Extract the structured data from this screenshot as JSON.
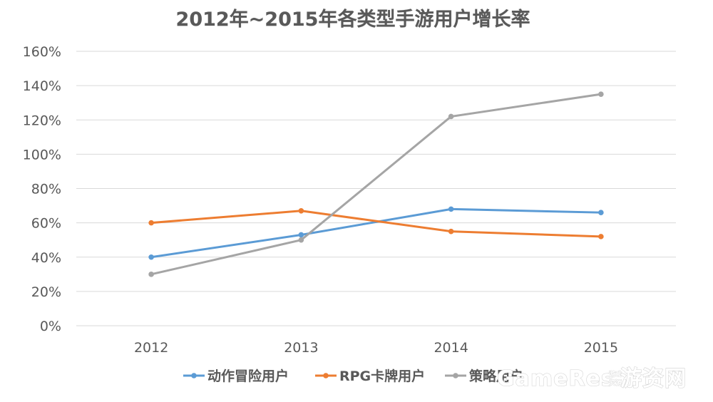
{
  "chart_data": {
    "type": "line",
    "title": "2012年~2015年各类型手游用户增长率",
    "xlabel": "",
    "ylabel": "",
    "categories": [
      "2012",
      "2013",
      "2014",
      "2015"
    ],
    "ylim": [
      0,
      160
    ],
    "yticks": [
      0,
      20,
      40,
      60,
      80,
      100,
      120,
      140,
      160
    ],
    "ytick_labels": [
      "0%",
      "20%",
      "40%",
      "60%",
      "80%",
      "100%",
      "120%",
      "140%",
      "160%"
    ],
    "grid": true,
    "legend_position": "bottom",
    "series": [
      {
        "name": "动作冒险用户",
        "color": "#5b9bd5",
        "values": [
          40,
          53,
          68,
          66
        ]
      },
      {
        "name": "RPG卡牌用户",
        "color": "#ed7d31",
        "values": [
          60,
          67,
          55,
          52
        ]
      },
      {
        "name": "策略用户",
        "color": "#a5a5a5",
        "values": [
          30,
          50,
          122,
          135
        ]
      }
    ]
  },
  "watermark": {
    "brand": "GameRes",
    "suffix": "游资网",
    "small_top": "游戏",
    "small_bottom": "资源"
  },
  "colors": {
    "gridline": "#d9d9d9",
    "text": "#595959"
  }
}
